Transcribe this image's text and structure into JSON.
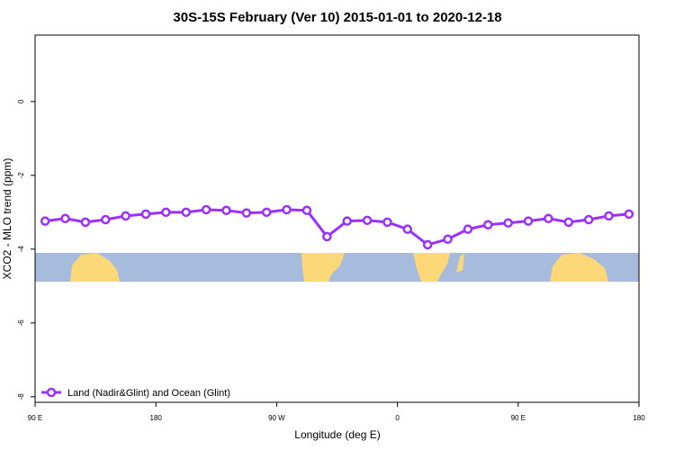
{
  "chart_data": {
    "type": "line",
    "title": "30S-15S February (Ver 10)   2015-01-01 to 2020-12-18",
    "xlabel": "Longitude (deg E)",
    "ylabel": "XCO2 - MLO trend (ppm)",
    "x": [
      97.5,
      112.5,
      127.5,
      142.5,
      157.5,
      172.5,
      187.5,
      202.5,
      217.5,
      232.5,
      247.5,
      262.5,
      277.5,
      292.5,
      307.5,
      322.5,
      337.5,
      352.5,
      367.5,
      382.5,
      397.5,
      412.5,
      427.5,
      442.5,
      457.5,
      472.5,
      487.5,
      502.5,
      517.5,
      532.5
    ],
    "series": [
      {
        "name": "Land (Nadir&Glint) and Ocean (Glint)",
        "color": "#9b30ff",
        "values": [
          -3.24,
          -3.17,
          -3.27,
          -3.2,
          -3.1,
          -3.05,
          -3.0,
          -3.0,
          -2.93,
          -2.95,
          -3.02,
          -3.0,
          -2.93,
          -2.95,
          -3.66,
          -3.24,
          -3.22,
          -3.27,
          -3.46,
          -3.88,
          -3.73,
          -3.46,
          -3.34,
          -3.29,
          -3.24,
          -3.17,
          -3.27,
          -3.2,
          -3.1,
          -3.05
        ]
      }
    ],
    "xlim": [
      90,
      540
    ],
    "xticks": [
      {
        "value": 90,
        "label": "90 E"
      },
      {
        "value": 180,
        "label": "180"
      },
      {
        "value": 270,
        "label": "90 W"
      },
      {
        "value": 360,
        "label": "0"
      },
      {
        "value": 450,
        "label": "90 E"
      },
      {
        "value": 540,
        "label": "180"
      }
    ],
    "ylim": [
      -8.15,
      1.8
    ],
    "yticks": [
      0,
      -2,
      -4,
      -6,
      -8
    ],
    "legend": "bottom-left"
  }
}
